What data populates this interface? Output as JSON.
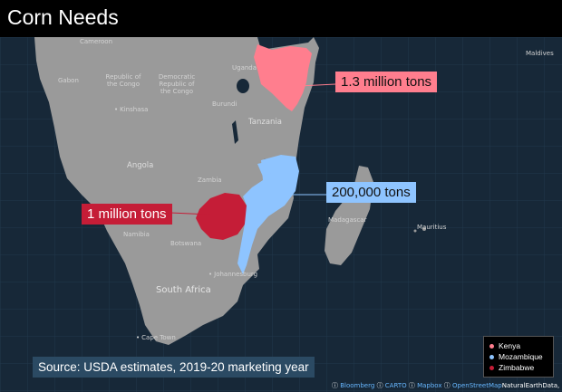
{
  "title": "Corn Needs",
  "colors": {
    "ocean": "#172838",
    "land": "#9a9a9a",
    "kenya": "#ff7e8e",
    "mozambique": "#8ec4ff",
    "zimbabwe": "#c51d37",
    "source_bg": "#2b4a63"
  },
  "callouts": {
    "kenya": "1.3 million tons",
    "mozambique": "200,000 tons",
    "zimbabwe": "1 million tons"
  },
  "places": {
    "cameroon": "Cameroon",
    "gabon": "Gabon",
    "rep_congo": "Republic of the Congo",
    "drc": "Democratic Republic of the Congo",
    "kinshasa": "Kinshasa",
    "uganda": "Uganda",
    "burundi": "Burundi",
    "tanzania": "Tanzania",
    "angola": "Angola",
    "zambia": "Zambia",
    "namibia": "Namibia",
    "botswana": "Botswana",
    "madagascar": "Madagascar",
    "mauritius": "Mauritius",
    "johannesburg": "Johannesburg",
    "south_africa": "South Africa",
    "cape_town": "Cape Town",
    "maldives": "Maldives"
  },
  "source": "Source: USDA estimates, 2019-20 marketing year",
  "legend": [
    {
      "label": "Kenya",
      "color": "#ff7e8e"
    },
    {
      "label": "Mozambique",
      "color": "#8ec4ff"
    },
    {
      "label": "Zimbabwe",
      "color": "#c51d37"
    }
  ],
  "attribution": {
    "bloomberg": "Bloomberg",
    "carto": "CARTO",
    "mapbox": "Mapbox",
    "osm": "OpenStreetMap",
    "ne": "NaturalEarthData,"
  }
}
